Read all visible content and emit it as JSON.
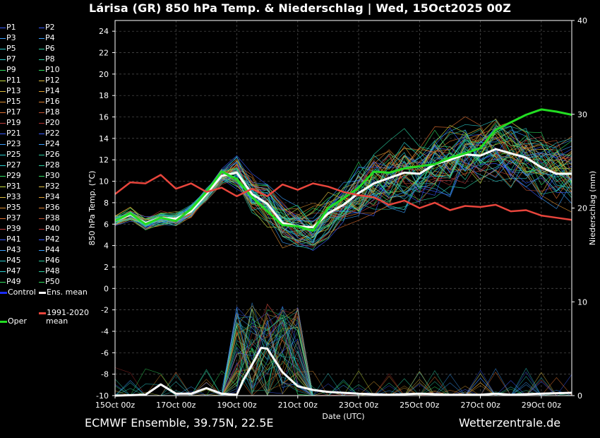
{
  "title": "Lárisa  (GR)  850 hPa Temp. & Niederschlag | Wed, 15Oct2025 00Z",
  "footer": {
    "left": "ECMWF Ensemble, 39.75N, 22.5E",
    "right": "Wetterzentrale.de"
  },
  "legend": {
    "members": [
      {
        "label": "P1",
        "color": "#3a5cff"
      },
      {
        "label": "P2",
        "color": "#3a5cff"
      },
      {
        "label": "P3",
        "color": "#3aa0ff"
      },
      {
        "label": "P4",
        "color": "#3aa0ff"
      },
      {
        "label": "P5",
        "color": "#2cd0d0"
      },
      {
        "label": "P6",
        "color": "#2cd0a0"
      },
      {
        "label": "P7",
        "color": "#2cd0d0"
      },
      {
        "label": "P8",
        "color": "#2cd0a0"
      },
      {
        "label": "P9",
        "color": "#30e060"
      },
      {
        "label": "P10",
        "color": "#30e060"
      },
      {
        "label": "P11",
        "color": "#c8e040"
      },
      {
        "label": "P12",
        "color": "#e0c040"
      },
      {
        "label": "P13",
        "color": "#e0c040"
      },
      {
        "label": "P14",
        "color": "#e0a030"
      },
      {
        "label": "P15",
        "color": "#e09030"
      },
      {
        "label": "P16",
        "color": "#e08030"
      },
      {
        "label": "P17",
        "color": "#e07030"
      },
      {
        "label": "P18",
        "color": "#c05030"
      },
      {
        "label": "P19",
        "color": "#c04040"
      },
      {
        "label": "P20",
        "color": "#b03030"
      },
      {
        "label": "P21",
        "color": "#3a5cff"
      },
      {
        "label": "P22",
        "color": "#3a5cff"
      },
      {
        "label": "P23",
        "color": "#3aa0ff"
      },
      {
        "label": "P24",
        "color": "#3aa0ff"
      },
      {
        "label": "P25",
        "color": "#2cd0d0"
      },
      {
        "label": "P26",
        "color": "#2cd0a0"
      },
      {
        "label": "P27",
        "color": "#2cd0d0"
      },
      {
        "label": "P28",
        "color": "#2cd0a0"
      },
      {
        "label": "P29",
        "color": "#30e060"
      },
      {
        "label": "P30",
        "color": "#30e060"
      },
      {
        "label": "P31",
        "color": "#c8e040"
      },
      {
        "label": "P32",
        "color": "#e0c040"
      },
      {
        "label": "P33",
        "color": "#e0c040"
      },
      {
        "label": "P34",
        "color": "#e0a030"
      },
      {
        "label": "P35",
        "color": "#e09030"
      },
      {
        "label": "P36",
        "color": "#e08030"
      },
      {
        "label": "P37",
        "color": "#e07030"
      },
      {
        "label": "P38",
        "color": "#c05030"
      },
      {
        "label": "P39",
        "color": "#c04040"
      },
      {
        "label": "P40",
        "color": "#b03030"
      },
      {
        "label": "P41",
        "color": "#3a5cff"
      },
      {
        "label": "P42",
        "color": "#3a5cff"
      },
      {
        "label": "P43",
        "color": "#3aa0ff"
      },
      {
        "label": "P44",
        "color": "#3aa0ff"
      },
      {
        "label": "P45",
        "color": "#2cd0d0"
      },
      {
        "label": "P46",
        "color": "#2cd0a0"
      },
      {
        "label": "P47",
        "color": "#2cd0d0"
      },
      {
        "label": "P48",
        "color": "#2cd0a0"
      },
      {
        "label": "P49",
        "color": "#30e060"
      },
      {
        "label": "P50",
        "color": "#30e060"
      }
    ],
    "control": {
      "label": "Control",
      "color": "#1a2cff"
    },
    "ens_mean": {
      "label": "Ens. mean",
      "color": "#ffffff"
    },
    "clim": {
      "label_line1": "1991-2020",
      "label_line2": "mean",
      "color": "#e8453c"
    },
    "oper": {
      "label": "Oper",
      "color": "#22dd22"
    }
  },
  "chart_data": {
    "type": "line",
    "title": "Lárisa  (GR)  850 hPa Temp. & Niederschlag | Wed, 15Oct2025 00Z",
    "xlabel": "Date (UTC)",
    "ylabel_left": "850 hPa Temp. (°C)",
    "ylabel_right": "Niederschlag (mm)",
    "x_ticks": [
      "15Oct 00z",
      "17Oct 00z",
      "19Oct 00z",
      "21Oct 00z",
      "23Oct 00z",
      "25Oct 00z",
      "27Oct 00z",
      "29Oct 00z"
    ],
    "x_range_days": [
      0,
      15
    ],
    "y_left_range": [
      -10,
      25
    ],
    "y_left_ticks": [
      -10,
      -8,
      -6,
      -4,
      -2,
      0,
      2,
      4,
      6,
      8,
      10,
      12,
      14,
      16,
      18,
      20,
      22,
      24
    ],
    "y_right_range": [
      0,
      40
    ],
    "y_right_ticks": [
      0,
      10,
      20,
      30,
      40
    ],
    "grid": true,
    "series": [
      {
        "name": "Ens. mean",
        "axis": "left",
        "color": "#ffffff",
        "width": 3,
        "x": [
          0,
          0.5,
          1,
          1.5,
          2,
          2.5,
          3,
          3.5,
          4,
          4.5,
          5,
          5.5,
          6,
          6.5,
          7,
          7.5,
          8,
          8.5,
          9,
          9.5,
          10,
          10.5,
          11,
          11.5,
          12,
          12.5,
          13,
          13.5,
          14,
          14.5,
          15
        ],
        "y": [
          6.3,
          6.9,
          6.1,
          6.6,
          6.5,
          7.2,
          8.8,
          10.5,
          10.8,
          8.8,
          7.9,
          6.1,
          5.8,
          5.7,
          7.0,
          7.8,
          8.9,
          9.8,
          10.3,
          10.8,
          10.7,
          11.6,
          12.0,
          12.5,
          12.4,
          13.0,
          12.6,
          12.2,
          11.3,
          10.7,
          10.7
        ]
      },
      {
        "name": "Oper",
        "axis": "left",
        "color": "#22dd22",
        "width": 3,
        "x": [
          0,
          0.5,
          1,
          1.5,
          2,
          2.5,
          3,
          3.5,
          4,
          4.5,
          5,
          5.5,
          6,
          6.5,
          7,
          7.5,
          8,
          8.5,
          9,
          9.5,
          10,
          10.5,
          11,
          11.5,
          12,
          12.5,
          13,
          13.5,
          14,
          14.5,
          15
        ],
        "y": [
          6.3,
          7.0,
          6.0,
          6.6,
          6.3,
          7.4,
          9.0,
          10.9,
          10.2,
          8.5,
          7.2,
          5.9,
          5.8,
          5.4,
          7.5,
          8.4,
          9.4,
          10.9,
          10.8,
          11.2,
          11.4,
          11.6,
          12.2,
          12.6,
          13.1,
          14.8,
          15.5,
          16.2,
          16.7,
          16.5,
          16.2
        ]
      },
      {
        "name": "1991-2020 mean",
        "axis": "left",
        "color": "#e8453c",
        "width": 2.5,
        "x": [
          0,
          0.5,
          1,
          1.5,
          2,
          2.5,
          3,
          3.5,
          4,
          4.5,
          5,
          5.5,
          6,
          6.5,
          7,
          7.5,
          8,
          8.5,
          9,
          9.5,
          10,
          10.5,
          11,
          11.5,
          12,
          12.5,
          13,
          13.5,
          14,
          14.5,
          15
        ],
        "y": [
          8.8,
          9.9,
          9.8,
          10.6,
          9.3,
          9.8,
          9.0,
          9.4,
          8.6,
          9.3,
          8.6,
          9.7,
          9.2,
          9.8,
          9.5,
          9.0,
          8.7,
          8.5,
          7.8,
          8.2,
          7.5,
          8.0,
          7.3,
          7.7,
          7.6,
          7.8,
          7.2,
          7.3,
          6.8,
          6.6,
          6.4
        ]
      },
      {
        "name": "Ens. mean precipitation",
        "axis": "right",
        "color": "#ffffff",
        "width": 3,
        "x": [
          0,
          1,
          1.5,
          2,
          2.5,
          3,
          3.5,
          4,
          4.2,
          4.5,
          4.8,
          5,
          5.5,
          6,
          6.5,
          7,
          8,
          9,
          10,
          11,
          12,
          12.5,
          13,
          14,
          15
        ],
        "y": [
          0,
          0.1,
          1.2,
          0.2,
          0.2,
          0.8,
          0.2,
          0.1,
          1.6,
          3.3,
          5.1,
          5.0,
          2.5,
          1.0,
          0.6,
          0.4,
          0.2,
          0.1,
          0.2,
          0.1,
          0.1,
          0.2,
          0.1,
          0.2,
          0.3
        ]
      }
    ],
    "annotations": [
      "850 hPa ensemble members P1–P50 plotted as thin colored lines"
    ]
  }
}
